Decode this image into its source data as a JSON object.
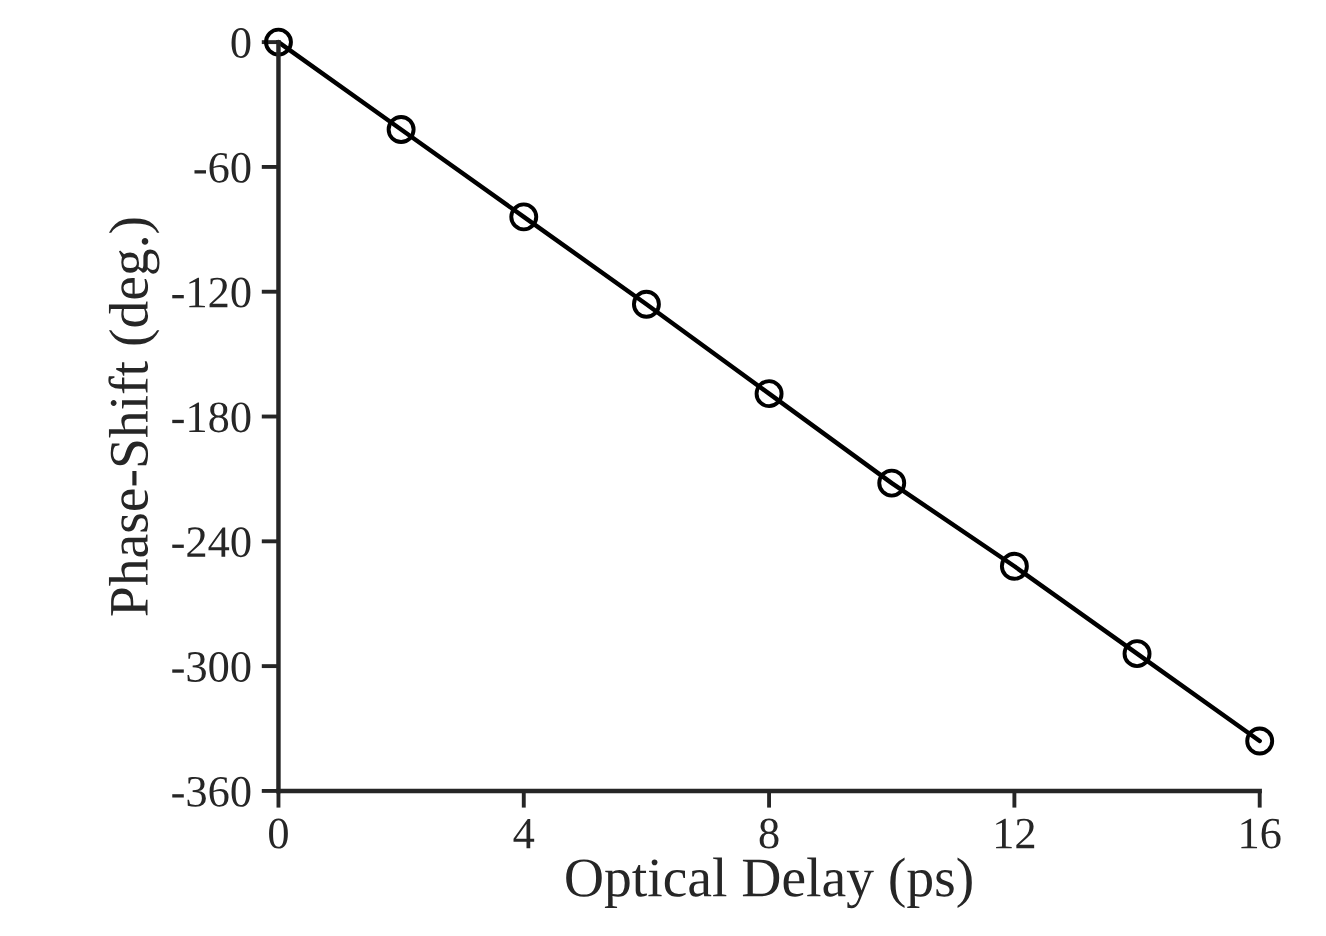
{
  "chart_data": {
    "type": "line",
    "xlabel": "Optical Delay (ps)",
    "ylabel": "Phase-Shift (deg.)",
    "x": [
      0,
      2,
      4,
      6,
      8,
      10,
      12,
      14,
      16
    ],
    "series": [
      {
        "color": "#000000",
        "values": [
          0,
          -42,
          -84,
          -126,
          -169,
          -212,
          -252,
          -294,
          -336
        ]
      }
    ],
    "marker": "circle",
    "line_style": "solid",
    "xlim": [
      0,
      16
    ],
    "xticks": [
      0,
      4,
      8,
      12,
      16
    ],
    "ylim": [
      -360,
      0
    ],
    "yticks": [
      -360,
      -300,
      -240,
      -180,
      -120,
      -60,
      0
    ],
    "grid": false
  }
}
